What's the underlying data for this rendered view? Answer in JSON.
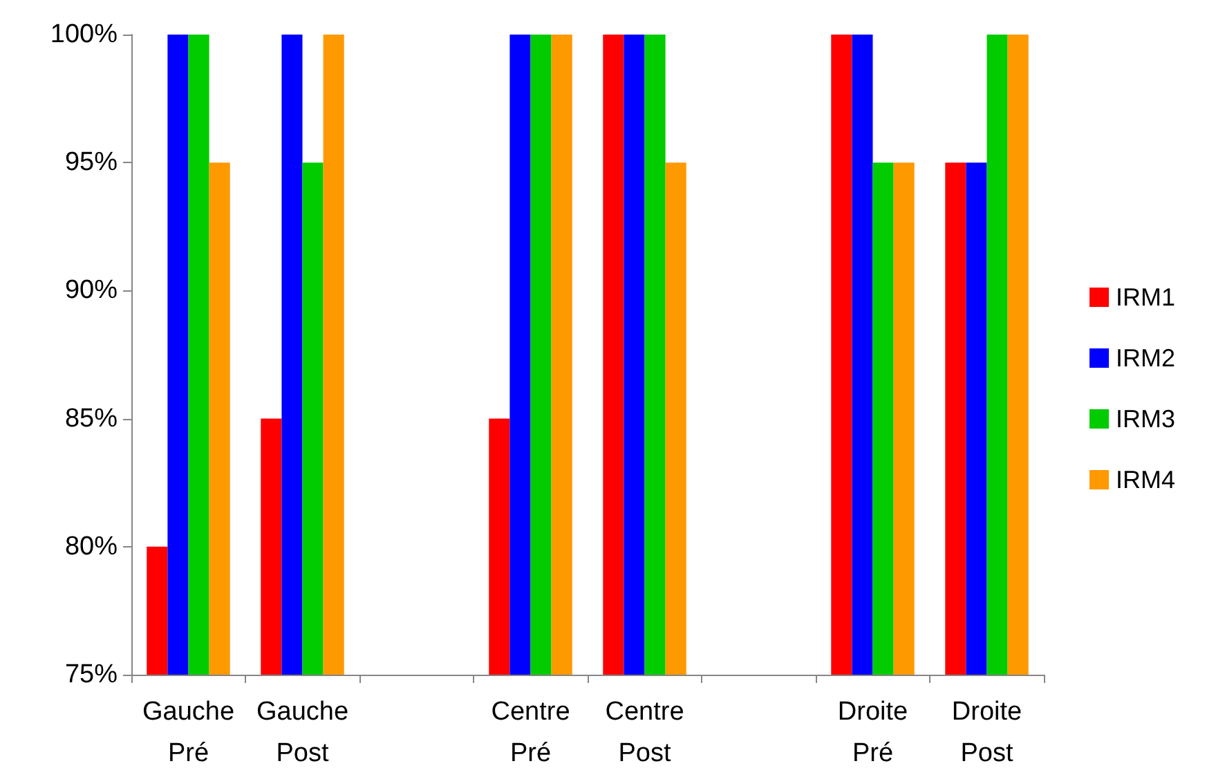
{
  "chart_data": {
    "type": "bar",
    "categories": [
      "Gauche\nPré",
      "Gauche\nPost",
      null,
      "Centre\nPré",
      "Centre\nPost",
      null,
      "Droite\nPré",
      "Droite\nPost"
    ],
    "series": [
      {
        "name": "IRM1",
        "color": "#ff0000",
        "values": [
          80,
          85,
          null,
          85,
          100,
          null,
          100,
          95
        ]
      },
      {
        "name": "IRM2",
        "color": "#0000ff",
        "values": [
          100,
          100,
          null,
          100,
          100,
          null,
          100,
          95
        ]
      },
      {
        "name": "IRM3",
        "color": "#00cc00",
        "values": [
          100,
          95,
          null,
          100,
          100,
          null,
          95,
          100
        ]
      },
      {
        "name": "IRM4",
        "color": "#ff9900",
        "values": [
          95,
          100,
          null,
          100,
          95,
          null,
          95,
          100
        ]
      }
    ],
    "ylim": [
      75,
      100
    ],
    "yticks": [
      {
        "value": 75,
        "label": "75%"
      },
      {
        "value": 80,
        "label": "80%"
      },
      {
        "value": 85,
        "label": "85%"
      },
      {
        "value": 90,
        "label": "90%"
      },
      {
        "value": 95,
        "label": "95%"
      },
      {
        "value": 100,
        "label": "100%"
      }
    ],
    "grid": false,
    "legend": "right"
  }
}
